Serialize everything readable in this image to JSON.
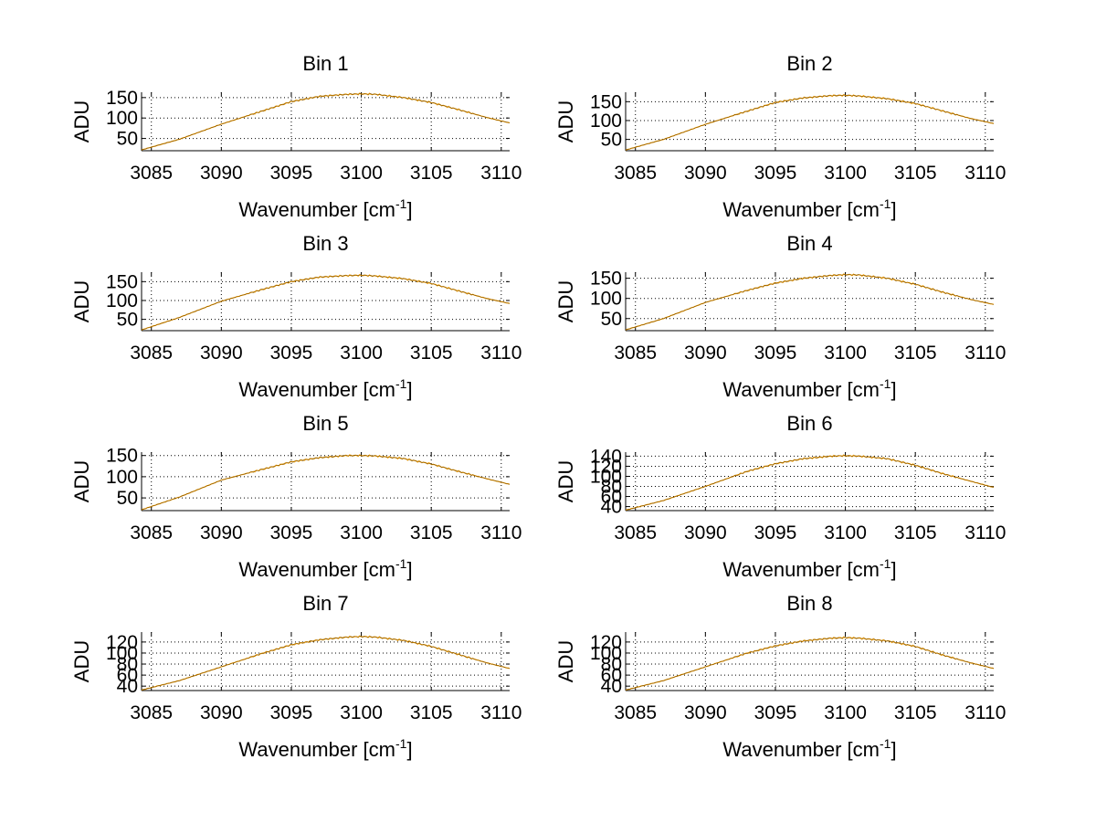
{
  "chart_data": [
    {
      "type": "line",
      "title": "Bin 1",
      "xlabel": "Wavenumber [cm",
      "xlabel_sup": "-1",
      "xlabel_close": "]",
      "ylabel": "ADU",
      "xlim": [
        3084.3,
        3110.6
      ],
      "ylim": [
        20,
        163
      ],
      "x_ticks": [
        3085,
        3090,
        3095,
        3100,
        3105,
        3110
      ],
      "y_ticks": [
        50,
        100,
        150
      ],
      "grid": true,
      "series": [
        {
          "color": "#ffa500",
          "x": [
            3084.3,
            3087,
            3090,
            3093,
            3095,
            3097,
            3099,
            3100,
            3101,
            3103,
            3105,
            3107,
            3109,
            3110.6
          ],
          "y": [
            22,
            48,
            85,
            118,
            140,
            153,
            158,
            159,
            158,
            150,
            138,
            120,
            101,
            88
          ]
        },
        {
          "color": "#000000",
          "x": [
            3084.3,
            3087,
            3090,
            3093,
            3095,
            3097,
            3099,
            3100,
            3101,
            3103,
            3105,
            3107,
            3109,
            3110.6
          ],
          "y": [
            22,
            48,
            85,
            118,
            140,
            153,
            158,
            159,
            158,
            150,
            138,
            120,
            101,
            88
          ]
        }
      ]
    },
    {
      "type": "line",
      "title": "Bin 2",
      "xlabel": "Wavenumber [cm",
      "xlabel_sup": "-1",
      "xlabel_close": "]",
      "ylabel": "ADU",
      "xlim": [
        3084.3,
        3110.6
      ],
      "ylim": [
        20,
        175
      ],
      "x_ticks": [
        3085,
        3090,
        3095,
        3100,
        3105,
        3110
      ],
      "y_ticks": [
        50,
        100,
        150
      ],
      "grid": true,
      "series": [
        {
          "color": "#ffa500",
          "x": [
            3084.3,
            3087,
            3090,
            3093,
            3095,
            3097,
            3099,
            3100,
            3101,
            3103,
            3105,
            3107,
            3109,
            3110.6
          ],
          "y": [
            22,
            50,
            90,
            125,
            148,
            160,
            166,
            167,
            165,
            158,
            145,
            125,
            105,
            92
          ]
        },
        {
          "color": "#000000",
          "x": [
            3084.3,
            3087,
            3090,
            3093,
            3095,
            3097,
            3099,
            3100,
            3101,
            3103,
            3105,
            3107,
            3109,
            3110.6
          ],
          "y": [
            22,
            50,
            90,
            125,
            148,
            160,
            166,
            167,
            165,
            158,
            145,
            125,
            105,
            92
          ]
        }
      ]
    },
    {
      "type": "line",
      "title": "Bin 3",
      "xlabel": "Wavenumber [cm",
      "xlabel_sup": "-1",
      "xlabel_close": "]",
      "ylabel": "ADU",
      "xlim": [
        3084.3,
        3110.6
      ],
      "ylim": [
        20,
        175
      ],
      "x_ticks": [
        3085,
        3090,
        3095,
        3100,
        3105,
        3110
      ],
      "y_ticks": [
        50,
        100,
        150
      ],
      "grid": true,
      "series": [
        {
          "color": "#ffa500",
          "x": [
            3084.3,
            3087,
            3090,
            3093,
            3095,
            3097,
            3099,
            3100,
            3101,
            3103,
            3105,
            3107,
            3109,
            3110.6
          ],
          "y": [
            22,
            55,
            98,
            130,
            150,
            162,
            166,
            167,
            165,
            158,
            145,
            125,
            105,
            92
          ]
        },
        {
          "color": "#000000",
          "x": [
            3084.3,
            3087,
            3090,
            3093,
            3095,
            3097,
            3099,
            3100,
            3101,
            3103,
            3105,
            3107,
            3109,
            3110.6
          ],
          "y": [
            22,
            55,
            98,
            130,
            150,
            162,
            166,
            167,
            165,
            158,
            145,
            125,
            105,
            92
          ]
        }
      ]
    },
    {
      "type": "line",
      "title": "Bin 4",
      "xlabel": "Wavenumber [cm",
      "xlabel_sup": "-1",
      "xlabel_close": "]",
      "ylabel": "ADU",
      "xlim": [
        3084.3,
        3110.6
      ],
      "ylim": [
        20,
        165
      ],
      "x_ticks": [
        3085,
        3090,
        3095,
        3100,
        3105,
        3110
      ],
      "y_ticks": [
        50,
        100,
        150
      ],
      "grid": true,
      "series": [
        {
          "color": "#ffa500",
          "x": [
            3084.3,
            3087,
            3090,
            3093,
            3095,
            3097,
            3099,
            3100,
            3101,
            3103,
            3105,
            3107,
            3109,
            3110.6
          ],
          "y": [
            22,
            50,
            90,
            120,
            138,
            150,
            157,
            159,
            158,
            150,
            135,
            115,
            97,
            85
          ]
        },
        {
          "color": "#000000",
          "x": [
            3084.3,
            3087,
            3090,
            3093,
            3095,
            3097,
            3099,
            3100,
            3101,
            3103,
            3105,
            3107,
            3109,
            3110.6
          ],
          "y": [
            22,
            50,
            90,
            120,
            138,
            150,
            157,
            159,
            158,
            150,
            135,
            115,
            97,
            85
          ]
        }
      ]
    },
    {
      "type": "line",
      "title": "Bin 5",
      "xlabel": "Wavenumber [cm",
      "xlabel_sup": "-1",
      "xlabel_close": "]",
      "ylabel": "ADU",
      "xlim": [
        3084.3,
        3110.6
      ],
      "ylim": [
        20,
        158
      ],
      "x_ticks": [
        3085,
        3090,
        3095,
        3100,
        3105,
        3110
      ],
      "y_ticks": [
        50,
        100,
        150
      ],
      "grid": true,
      "series": [
        {
          "color": "#ffa500",
          "x": [
            3084.3,
            3087,
            3090,
            3093,
            3095,
            3097,
            3099,
            3100,
            3101,
            3103,
            3105,
            3107,
            3109,
            3110.6
          ],
          "y": [
            22,
            52,
            92,
            118,
            135,
            145,
            150,
            150,
            149,
            143,
            130,
            112,
            95,
            82
          ]
        },
        {
          "color": "#000000",
          "x": [
            3084.3,
            3087,
            3090,
            3093,
            3095,
            3097,
            3099,
            3100,
            3101,
            3103,
            3105,
            3107,
            3109,
            3110.6
          ],
          "y": [
            22,
            52,
            92,
            118,
            135,
            145,
            150,
            150,
            149,
            143,
            130,
            112,
            95,
            82
          ]
        }
      ]
    },
    {
      "type": "line",
      "title": "Bin 6",
      "xlabel": "Wavenumber [cm",
      "xlabel_sup": "-1",
      "xlabel_close": "]",
      "ylabel": "ADU",
      "xlim": [
        3084.3,
        3110.6
      ],
      "ylim": [
        32,
        148
      ],
      "x_ticks": [
        3085,
        3090,
        3095,
        3100,
        3105,
        3110
      ],
      "y_ticks": [
        40,
        60,
        80,
        100,
        120,
        140
      ],
      "y_tick_labels": [
        "40",
        "60",
        "80",
        "100",
        "120",
        "140"
      ],
      "grid": true,
      "series": [
        {
          "color": "#ffa500",
          "x": [
            3084.3,
            3087,
            3090,
            3093,
            3095,
            3097,
            3099,
            3100,
            3101,
            3103,
            3105,
            3107,
            3109,
            3110.6
          ],
          "y": [
            33,
            52,
            80,
            110,
            125,
            135,
            140,
            141,
            140,
            135,
            122,
            105,
            90,
            78
          ]
        },
        {
          "color": "#000000",
          "x": [
            3084.3,
            3087,
            3090,
            3093,
            3095,
            3097,
            3099,
            3100,
            3101,
            3103,
            3105,
            3107,
            3109,
            3110.6
          ],
          "y": [
            33,
            52,
            80,
            110,
            125,
            135,
            140,
            141,
            140,
            135,
            122,
            105,
            90,
            78
          ]
        }
      ]
    },
    {
      "type": "line",
      "title": "Bin 7",
      "xlabel": "Wavenumber [cm",
      "xlabel_sup": "-1",
      "xlabel_close": "]",
      "ylabel": "ADU",
      "xlim": [
        3084.3,
        3110.6
      ],
      "ylim": [
        32,
        138
      ],
      "x_ticks": [
        3085,
        3090,
        3095,
        3100,
        3105,
        3110
      ],
      "y_ticks": [
        40,
        60,
        80,
        100,
        120
      ],
      "y_tick_labels": [
        "40",
        "60",
        "80",
        "100",
        "120"
      ],
      "grid": true,
      "series": [
        {
          "color": "#ffa500",
          "x": [
            3084.3,
            3087,
            3090,
            3093,
            3095,
            3097,
            3099,
            3100,
            3101,
            3103,
            3105,
            3107,
            3109,
            3110.6
          ],
          "y": [
            33,
            50,
            75,
            100,
            115,
            124,
            129,
            130,
            129,
            123,
            112,
            97,
            82,
            72
          ]
        },
        {
          "color": "#000000",
          "x": [
            3084.3,
            3087,
            3090,
            3093,
            3095,
            3097,
            3099,
            3100,
            3101,
            3103,
            3105,
            3107,
            3109,
            3110.6
          ],
          "y": [
            33,
            50,
            75,
            100,
            115,
            124,
            129,
            130,
            129,
            123,
            112,
            97,
            82,
            72
          ]
        }
      ]
    },
    {
      "type": "line",
      "title": "Bin 8",
      "xlabel": "Wavenumber [cm",
      "xlabel_sup": "-1",
      "xlabel_close": "]",
      "ylabel": "ADU",
      "xlim": [
        3084.3,
        3110.6
      ],
      "ylim": [
        32,
        138
      ],
      "x_ticks": [
        3085,
        3090,
        3095,
        3100,
        3105,
        3110
      ],
      "y_ticks": [
        40,
        60,
        80,
        100,
        120
      ],
      "y_tick_labels": [
        "40",
        "60",
        "80",
        "100",
        "120"
      ],
      "grid": true,
      "series": [
        {
          "color": "#ffa500",
          "x": [
            3084.3,
            3087,
            3090,
            3093,
            3095,
            3097,
            3099,
            3100,
            3101,
            3103,
            3105,
            3107,
            3109,
            3110.6
          ],
          "y": [
            33,
            50,
            75,
            100,
            113,
            122,
            127,
            128,
            127,
            122,
            112,
            96,
            82,
            72
          ]
        },
        {
          "color": "#000000",
          "x": [
            3084.3,
            3087,
            3090,
            3093,
            3095,
            3097,
            3099,
            3100,
            3101,
            3103,
            3105,
            3107,
            3109,
            3110.6
          ],
          "y": [
            33,
            50,
            75,
            100,
            113,
            122,
            127,
            128,
            127,
            122,
            112,
            96,
            82,
            72
          ]
        }
      ]
    }
  ]
}
